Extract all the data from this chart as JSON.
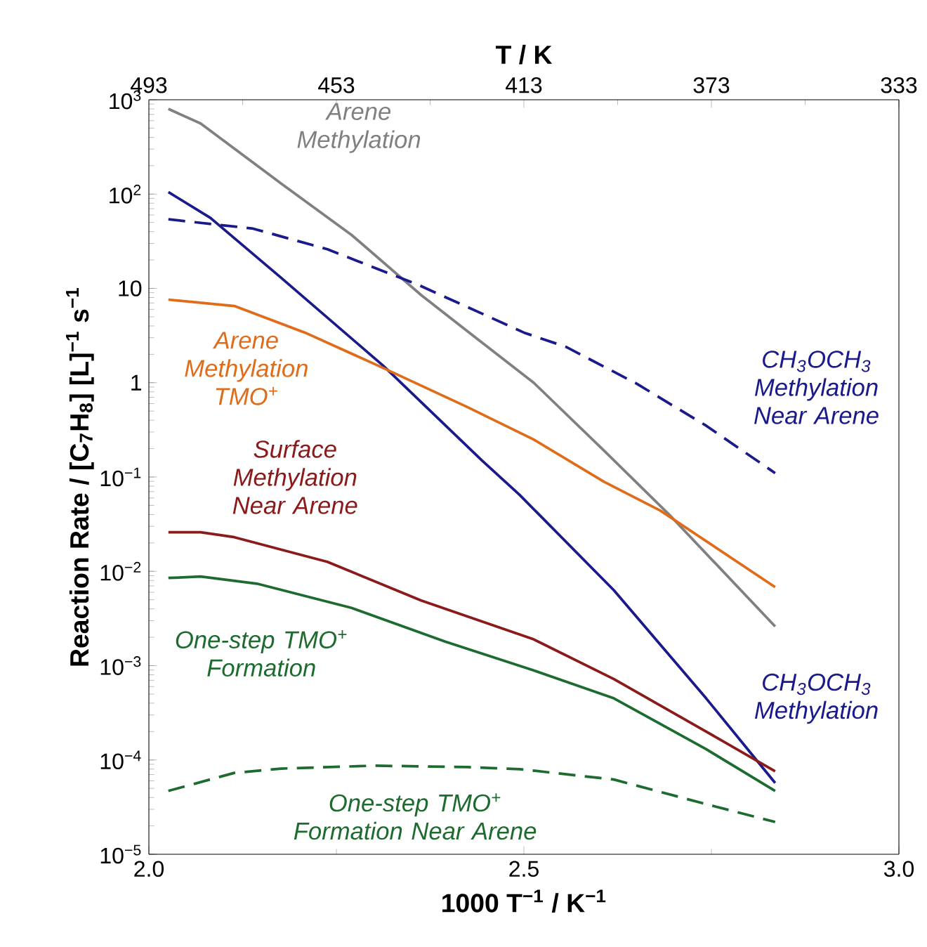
{
  "chart_data": {
    "type": "line",
    "xlabel": "1000 T$^{−1}$ / K$^{−1}$",
    "ylabel": "Reaction Rate / [C$_{7}$H$_{8}$] [L]$^{−1}$ s$^{−1}$",
    "x2label": "T / K",
    "xlim": [
      2.0,
      3.0
    ],
    "xticks": [
      {
        "value": 2.0,
        "label": "2.0"
      },
      2.5,
      {
        "value": 3.0,
        "label": "3.0"
      }
    ],
    "x2lim": [
      493,
      333
    ],
    "x2ticks": [
      493,
      453,
      413,
      373,
      333
    ],
    "ylim": [
      1e-05,
      1000
    ],
    "log": "y",
    "yticks": [
      {
        "value": 1e-05,
        "label": "10$^{−5}$"
      },
      {
        "value": 0.0001,
        "label": "10$^{−4}$"
      },
      {
        "value": 0.001,
        "label": "10$^{−3}$"
      },
      {
        "value": 0.01,
        "label": "10$^{−2}$"
      },
      {
        "value": 0.1,
        "label": "10$^{−1}$"
      },
      1,
      10,
      {
        "value": 100,
        "label": "10$^{2}$"
      },
      {
        "value": 1000,
        "label": "10$^{3}$"
      }
    ],
    "grid": false,
    "marker": "none",
    "series": [
      {
        "name": "Arene Methylation",
        "color": "#808080",
        "line_style": "solid",
        "x": [
          2.026,
          2.069,
          2.176,
          2.27,
          2.363,
          2.425,
          2.513,
          2.607,
          2.695,
          2.835
        ],
        "values": [
          800,
          560,
          130,
          37,
          8.5,
          3.5,
          1.0,
          0.19,
          0.039,
          0.0026
        ]
      },
      {
        "name": "CH$_{3}$OCH$_{3}$ Methylation",
        "color": "#1a1a8c",
        "line_style": "solid",
        "x": [
          2.026,
          2.082,
          2.176,
          2.313,
          2.444,
          2.494,
          2.62,
          2.743,
          2.835
        ],
        "values": [
          105,
          56,
          13,
          1.5,
          0.15,
          0.065,
          0.0063,
          0.00045,
          5.7e-05
        ]
      },
      {
        "name": "CH$_{3}$OCH$_{3}$ Methylation Near Arene",
        "color": "#1a1a8c",
        "line_style": "dashed",
        "x": [
          2.026,
          2.139,
          2.238,
          2.358,
          2.5,
          2.556,
          2.65,
          2.743,
          2.835
        ],
        "values": [
          54,
          43,
          26,
          11,
          3.4,
          2.4,
          0.98,
          0.35,
          0.11
        ]
      },
      {
        "name": "Arene Methylation TMO$^{+}$",
        "color": "#e06c1a",
        "line_style": "solid",
        "x": [
          2.026,
          2.114,
          2.208,
          2.307,
          2.425,
          2.513,
          2.607,
          2.682,
          2.835
        ],
        "values": [
          7.6,
          6.5,
          3.4,
          1.5,
          0.55,
          0.25,
          0.089,
          0.044,
          0.0068
        ]
      },
      {
        "name": "Surface Methylation Near Arene",
        "color": "#8b1a1a",
        "line_style": "solid",
        "x": [
          2.026,
          2.069,
          2.114,
          2.238,
          2.363,
          2.513,
          2.62,
          2.743,
          2.835
        ],
        "values": [
          0.026,
          0.026,
          0.023,
          0.0126,
          0.0049,
          0.0019,
          0.00072,
          0.0002,
          7.6e-05
        ]
      },
      {
        "name": "One-step TMO$^{+}$ Formation",
        "color": "#1e6b30",
        "line_style": "solid",
        "x": [
          2.026,
          2.069,
          2.144,
          2.27,
          2.395,
          2.513,
          2.62,
          2.743,
          2.835
        ],
        "values": [
          0.0085,
          0.0088,
          0.0074,
          0.0041,
          0.0018,
          0.00089,
          0.00045,
          0.00013,
          4.7e-05
        ]
      },
      {
        "name": "One-step TMO$^{+}$ Formation Near Arene",
        "color": "#1e6b30",
        "line_style": "dashed",
        "x": [
          2.026,
          2.114,
          2.176,
          2.301,
          2.425,
          2.494,
          2.62,
          2.743,
          2.835
        ],
        "values": [
          4.7e-05,
          7.3e-05,
          8.1e-05,
          8.7e-05,
          8.4e-05,
          8e-05,
          6.2e-05,
          3.4e-05,
          2.2e-05
        ]
      }
    ]
  }
}
